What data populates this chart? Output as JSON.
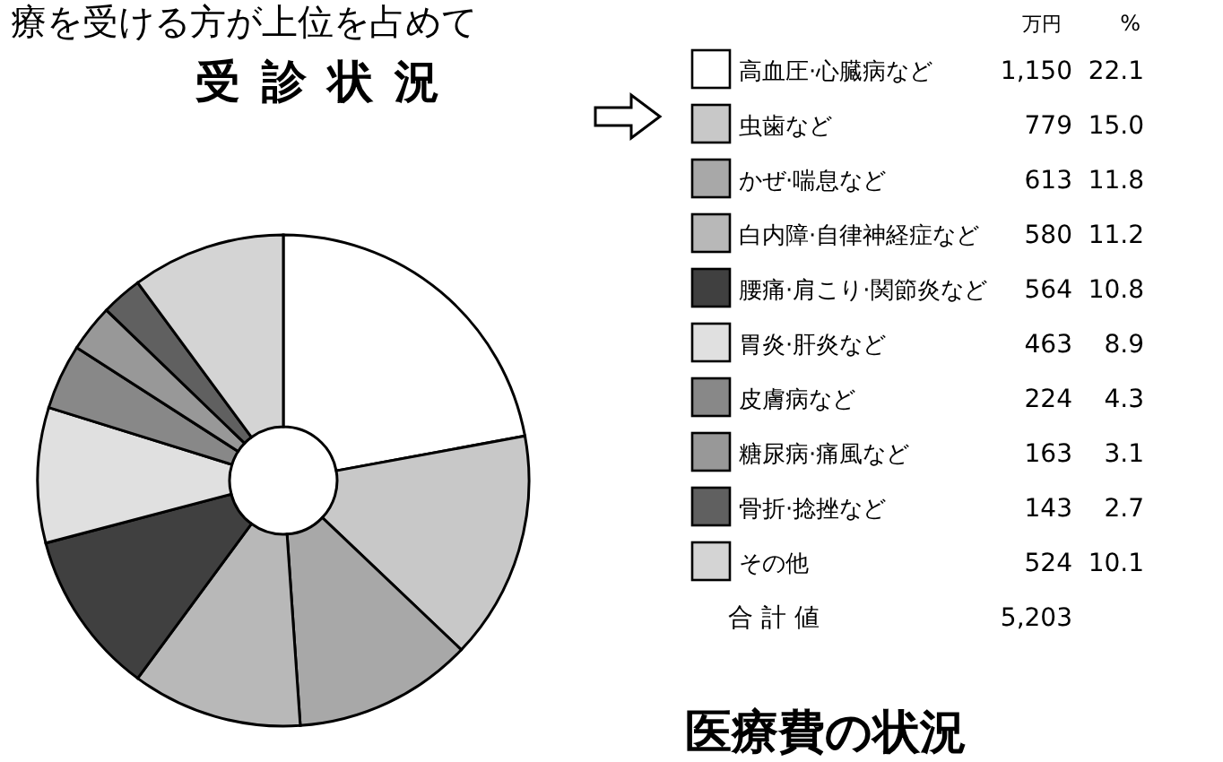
{
  "chart_data": {
    "type": "donut",
    "title": "受診状況",
    "subtitle": "医療費の状況",
    "categories": [
      "高血圧·心臓病など",
      "虫歯など",
      "かぜ·喘息など",
      "白内障·自律神経症など",
      "腰痛·肩こり·関節炎など",
      "胃炎·肝炎など",
      "皮膚病など",
      "糖尿病·痛風など",
      "骨折·捻挫など",
      "その他"
    ],
    "values": [
      22.1,
      15.0,
      11.8,
      11.2,
      10.8,
      8.9,
      4.3,
      3.1,
      2.7,
      10.1
    ],
    "colors": [
      "#ffffff",
      "#c8c8c8",
      "#a8a8a8",
      "#b8b8b8",
      "#404040",
      "#e0e0e0",
      "#888888",
      "#989898",
      "#606060",
      "#d4d4d4"
    ],
    "legend": "right",
    "annotations": [
      "療を受ける方が上位を占めて",
      "万円",
      "%",
      "1,150",
      "779",
      "613",
      "580",
      "564",
      "463",
      "224",
      "163",
      "143",
      "524",
      "22.1",
      "15.0",
      "11.8",
      "11.2",
      "10.8",
      "8.9",
      "4.3",
      "3.1",
      "2.7",
      "10.1",
      "合 計 値",
      "5,203"
    ]
  }
}
